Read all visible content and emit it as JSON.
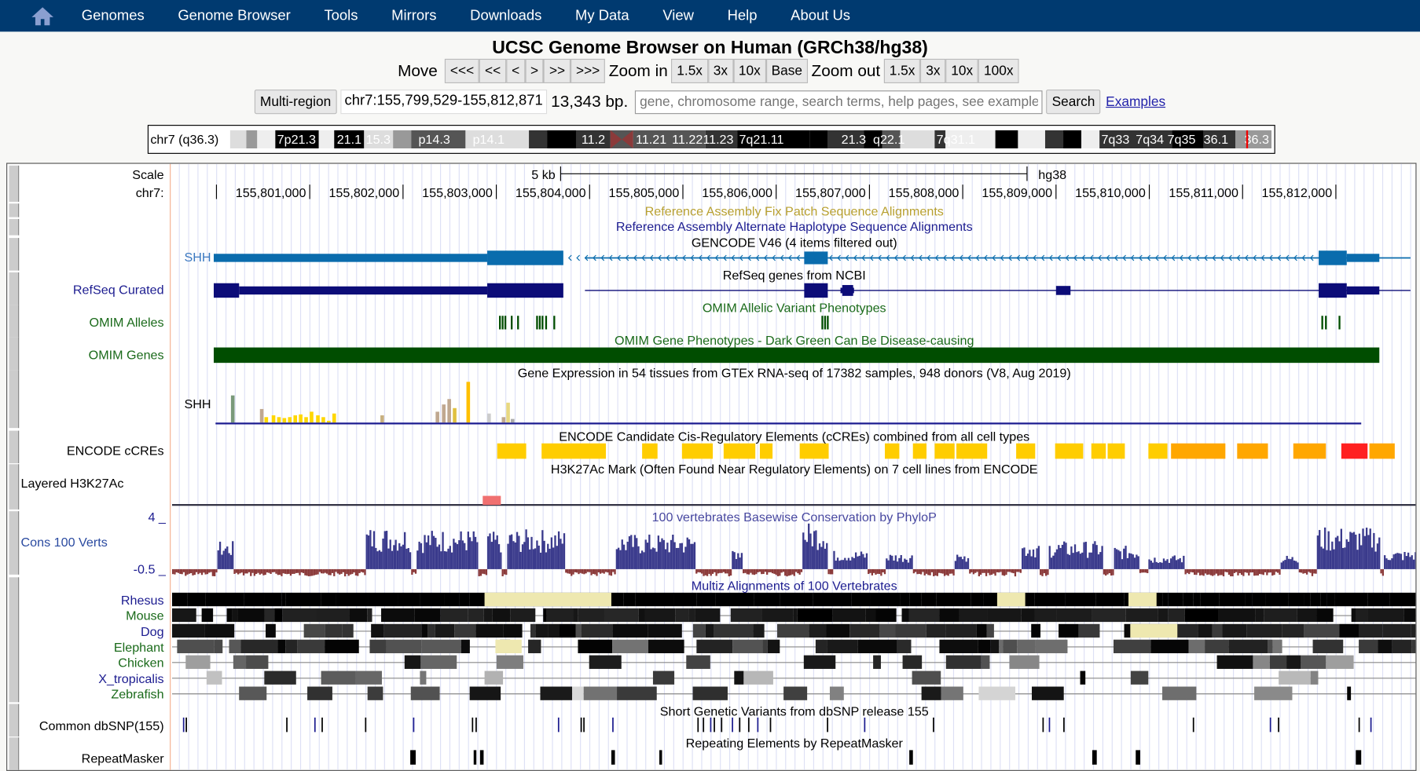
{
  "nav": {
    "items": [
      "Genomes",
      "Genome Browser",
      "Tools",
      "Mirrors",
      "Downloads",
      "My Data",
      "View",
      "Help",
      "About Us"
    ],
    "home_icon": "home-icon"
  },
  "title": "UCSC Genome Browser on Human (GRCh38/hg38)",
  "move": {
    "label": "Move",
    "buttons": [
      "<<<",
      "<<",
      "<",
      ">",
      ">>",
      ">>>"
    ]
  },
  "zoom_in": {
    "label": "Zoom in",
    "buttons": [
      "1.5x",
      "3x",
      "10x",
      "Base"
    ]
  },
  "zoom_out": {
    "label": "Zoom out",
    "buttons": [
      "1.5x",
      "3x",
      "10x",
      "100x"
    ]
  },
  "position": {
    "multi_region": "Multi-region",
    "value": "chr7:155,799,529-155,812,871",
    "size": "13,343 bp.",
    "search_placeholder": "gene, chromosome range, search terms, help pages, see examples",
    "search": "Search",
    "examples": "Examples"
  },
  "ideogram": {
    "label": "chr7 (q36.3)",
    "bands": [
      "7p21.3",
      "21.1",
      "15.3",
      "p14.3",
      "p14.1",
      "11.2",
      "11.21",
      "11.22",
      "11.23",
      "7q21.11",
      "21.3",
      "q22.1",
      "7q31.1",
      "7q33",
      "7q34",
      "7q35",
      "36.1",
      "36.3"
    ]
  },
  "scale": {
    "label": "Scale",
    "chrom": "chr7:",
    "size": "5 kb",
    "assembly": "hg38",
    "ticks": [
      "155,801,000",
      "155,802,000",
      "155,803,000",
      "155,804,000",
      "155,805,000",
      "155,806,000",
      "155,807,000",
      "155,808,000",
      "155,809,000",
      "155,810,000",
      "155,811,000",
      "155,812,000"
    ]
  },
  "tracks": {
    "fix_patch": "Reference Assembly Fix Patch Sequence Alignments",
    "alt_hap": "Reference Assembly Alternate Haplotype Sequence Alignments",
    "gencode": "GENCODE V46 (4 items filtered out)",
    "gencode_gene": "SHH",
    "refseq_label": "RefSeq Curated",
    "refseq": "RefSeq genes from NCBI",
    "omim_alleles_label": "OMIM Alleles",
    "omim_alleles": "OMIM Allelic Variant Phenotypes",
    "omim_genes_label": "OMIM Genes",
    "omim_genes": "OMIM Gene Phenotypes - Dark Green Can Be Disease-causing",
    "gtex": "Gene Expression in 54 tissues from GTEx RNA-seq of 17382 samples, 948 donors (V8, Aug 2019)",
    "gtex_gene": "SHH",
    "ccre_label": "ENCODE cCREs",
    "ccre": "ENCODE Candidate Cis-Regulatory Elements (cCREs) combined from all cell types",
    "h3k27_label": "Layered H3K27Ac",
    "h3k27": "H3K27Ac Mark (Often Found Near Regulatory Elements) on 7 cell lines from ENCODE",
    "cons_label": "Cons 100 Verts",
    "cons": "100 vertebrates Basewise Conservation by PhyloP",
    "cons_max": "4 _",
    "cons_min": "-0.5 _",
    "multiz": "Multiz Alignments of 100 Vertebrates",
    "species": [
      "Rhesus",
      "Mouse",
      "Dog",
      "Elephant",
      "Chicken",
      "X_tropicalis",
      "Zebrafish"
    ],
    "dbsnp_label": "Common dbSNP(155)",
    "dbsnp": "Short Genetic Variants from dbSNP release 155",
    "rmsk_label": "RepeatMasker",
    "rmsk": "Repeating Elements by RepeatMasker"
  },
  "colors": {
    "nav": "#003a70",
    "gencode": "#0a6cad",
    "refseq": "#0c0c78",
    "omim": "#004d00",
    "ccre": "#ffcd00",
    "cons": "#3a3a8c"
  }
}
